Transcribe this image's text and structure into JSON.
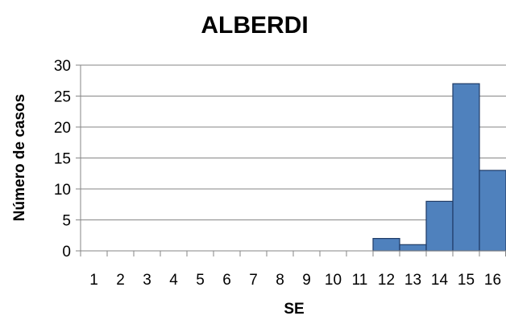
{
  "chart_data": {
    "type": "bar",
    "title": "ALBERDI",
    "xlabel": "SE",
    "ylabel": "Número de casos",
    "categories": [
      "1",
      "2",
      "3",
      "4",
      "5",
      "6",
      "7",
      "8",
      "9",
      "10",
      "11",
      "12",
      "13",
      "14",
      "15",
      "16"
    ],
    "values": [
      0,
      0,
      0,
      0,
      0,
      0,
      0,
      0,
      0,
      0,
      0,
      2,
      1,
      8,
      27,
      13
    ],
    "ylim": [
      0,
      30
    ],
    "yticks": [
      0,
      5,
      10,
      15,
      20,
      25,
      30
    ],
    "grid": true,
    "legend": "none",
    "bar_color": "#4f81bd",
    "bar_edge_color": "#1f3b66"
  }
}
